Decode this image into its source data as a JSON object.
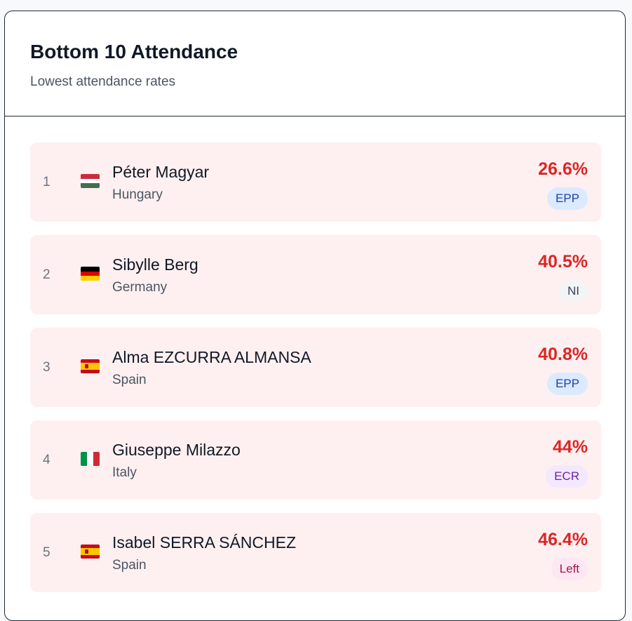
{
  "header": {
    "title": "Bottom 10 Attendance",
    "subtitle": "Lowest attendance rates"
  },
  "colors": {
    "percentage": "#dc2626",
    "row_background": "#fef0f0"
  },
  "members": [
    {
      "rank": "1",
      "name": "Péter Magyar",
      "country": "Hungary",
      "flag_icon": "hungary-flag-icon",
      "attendance": "26.6%",
      "group": "EPP"
    },
    {
      "rank": "2",
      "name": "Sibylle Berg",
      "country": "Germany",
      "flag_icon": "germany-flag-icon",
      "attendance": "40.5%",
      "group": "NI"
    },
    {
      "rank": "3",
      "name": "Alma EZCURRA ALMANSA",
      "country": "Spain",
      "flag_icon": "spain-flag-icon",
      "attendance": "40.8%",
      "group": "EPP"
    },
    {
      "rank": "4",
      "name": "Giuseppe Milazzo",
      "country": "Italy",
      "flag_icon": "italy-flag-icon",
      "attendance": "44%",
      "group": "ECR"
    },
    {
      "rank": "5",
      "name": "Isabel SERRA SÁNCHEZ",
      "country": "Spain",
      "flag_icon": "spain-flag-icon",
      "attendance": "46.4%",
      "group": "Left"
    }
  ]
}
